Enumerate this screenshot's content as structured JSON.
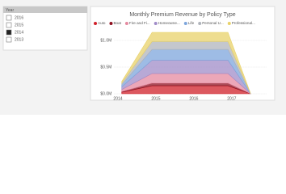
{
  "slicer": {
    "title": "Year",
    "items": [
      {
        "label": "2016",
        "checked": false
      },
      {
        "label": "2015",
        "checked": false
      },
      {
        "label": "2014",
        "checked": true
      },
      {
        "label": "2013",
        "checked": false
      }
    ]
  },
  "chart_data": {
    "type": "area",
    "stacked": true,
    "title": "Monthly Premium Revenue by Policy Type",
    "x": [
      2014.1,
      2014.9,
      2016.9,
      2017.5
    ],
    "xlim": [
      2013.9,
      2017.6
    ],
    "xticks": [
      2014,
      2015,
      2016,
      2017
    ],
    "ylim": [
      0,
      1.2
    ],
    "yticks": [
      {
        "value": 0,
        "label": "$0.0M"
      },
      {
        "value": 0.5,
        "label": "$0.5M"
      },
      {
        "value": 1,
        "label": "$1.0M"
      }
    ],
    "grid": true,
    "series": [
      {
        "name": "Auto",
        "color": "#d0202a",
        "values": [
          0.03,
          0.15,
          0.15,
          0
        ]
      },
      {
        "name": "Boat",
        "color": "#8e1020",
        "values": [
          0.01,
          0.05,
          0.05,
          0
        ]
      },
      {
        "name": "Fire and Fi...",
        "color": "#e58aa0",
        "values": [
          0.04,
          0.18,
          0.18,
          0
        ]
      },
      {
        "name": "Homeowne...",
        "color": "#a08cc8",
        "values": [
          0.05,
          0.25,
          0.25,
          0
        ]
      },
      {
        "name": "Life",
        "color": "#7ea6dc",
        "values": [
          0.04,
          0.2,
          0.2,
          0
        ]
      },
      {
        "name": "Personal U...",
        "color": "#b0b4bc",
        "values": [
          0.03,
          0.15,
          0.15,
          0
        ]
      },
      {
        "name": "Professional...",
        "color": "#e8d26a",
        "values": [
          0.03,
          0.17,
          0.17,
          0
        ]
      }
    ]
  }
}
